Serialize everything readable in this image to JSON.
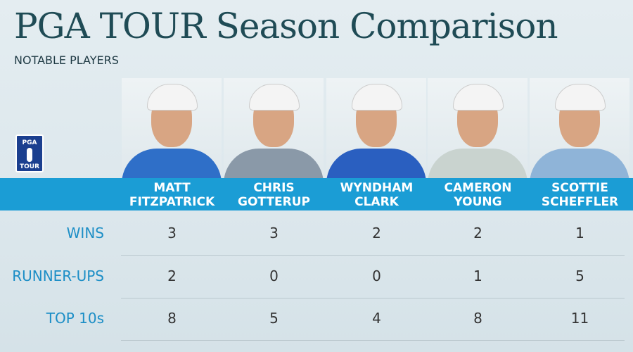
{
  "header": {
    "title": "PGA TOUR Season Comparison",
    "subtitle": "NOTABLE PLAYERS"
  },
  "logo": {
    "top": "PGA",
    "bottom": "TOUR"
  },
  "table": {
    "players": [
      {
        "first": "MATT",
        "last": "FITZPATRICK"
      },
      {
        "first": "CHRIS",
        "last": "GOTTERUP"
      },
      {
        "first": "WYNDHAM",
        "last": "CLARK"
      },
      {
        "first": "CAMERON",
        "last": "YOUNG"
      },
      {
        "first": "SCOTTIE",
        "last": "SCHEFFLER"
      }
    ],
    "rows": [
      {
        "label": "WINS",
        "values": [
          3,
          3,
          2,
          2,
          1
        ]
      },
      {
        "label": "RUNNER-UPS",
        "values": [
          2,
          0,
          0,
          1,
          5
        ]
      },
      {
        "label": "TOP 10s",
        "values": [
          8,
          5,
          4,
          8,
          11
        ]
      }
    ]
  }
}
